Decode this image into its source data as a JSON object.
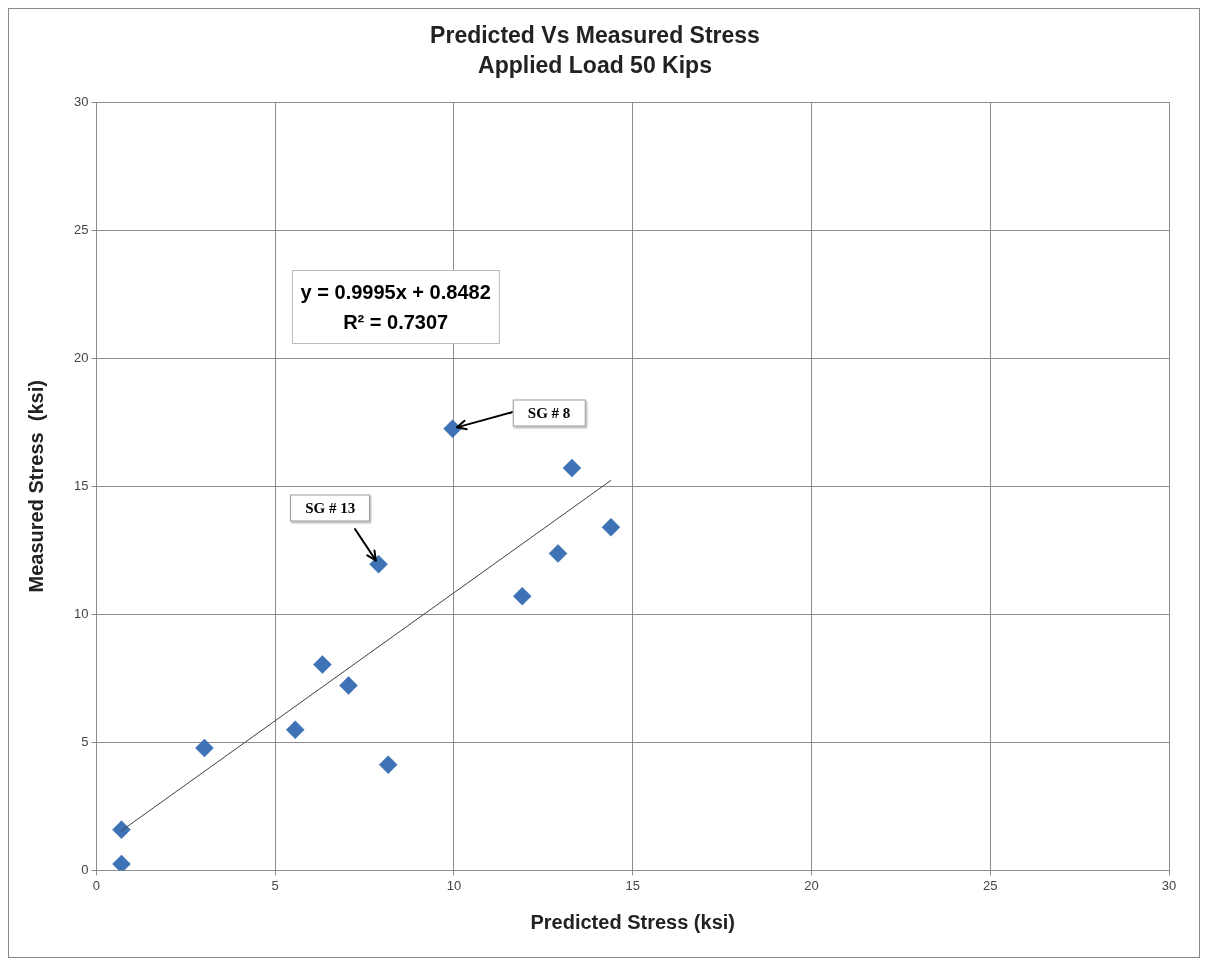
{
  "chart_data": {
    "type": "scatter",
    "title": "Predicted Vs Measured Stress",
    "subtitle": "Applied Load 50 Kips",
    "xlabel": "Predicted Stress (ksi)",
    "ylabel": "Measured Stress  (ksi)",
    "xlim": [
      0,
      30
    ],
    "ylim": [
      0,
      30
    ],
    "xticks": [
      0,
      5,
      10,
      15,
      20,
      25,
      30
    ],
    "yticks": [
      0,
      5,
      10,
      15,
      20,
      25,
      30
    ],
    "grid": true,
    "marker": "diamond",
    "series": [
      {
        "type": "scatter",
        "color": "#3d72b4",
        "x": [
          0.7,
          0.7,
          3.02,
          5.56,
          6.32,
          7.05,
          8.16,
          7.89,
          9.96,
          11.91,
          12.91,
          13.3,
          14.39
        ],
        "values": [
          1.59,
          0.25,
          4.78,
          5.49,
          8.04,
          7.22,
          4.13,
          11.96,
          17.25,
          10.71,
          12.38,
          15.71,
          13.4
        ]
      },
      {
        "type": "line",
        "color": "#404040",
        "marker": "none",
        "x": [
          0.7,
          14.39
        ],
        "values": [
          1.55,
          15.23
        ]
      }
    ],
    "annotations": [
      "y = 0.9995x + 0.8482\nR² = 0.7307",
      {
        "text": "SG # 8",
        "x": 9.96,
        "y": 17.25
      },
      {
        "text": "SG # 13",
        "x": 7.89,
        "y": 11.96
      }
    ]
  }
}
